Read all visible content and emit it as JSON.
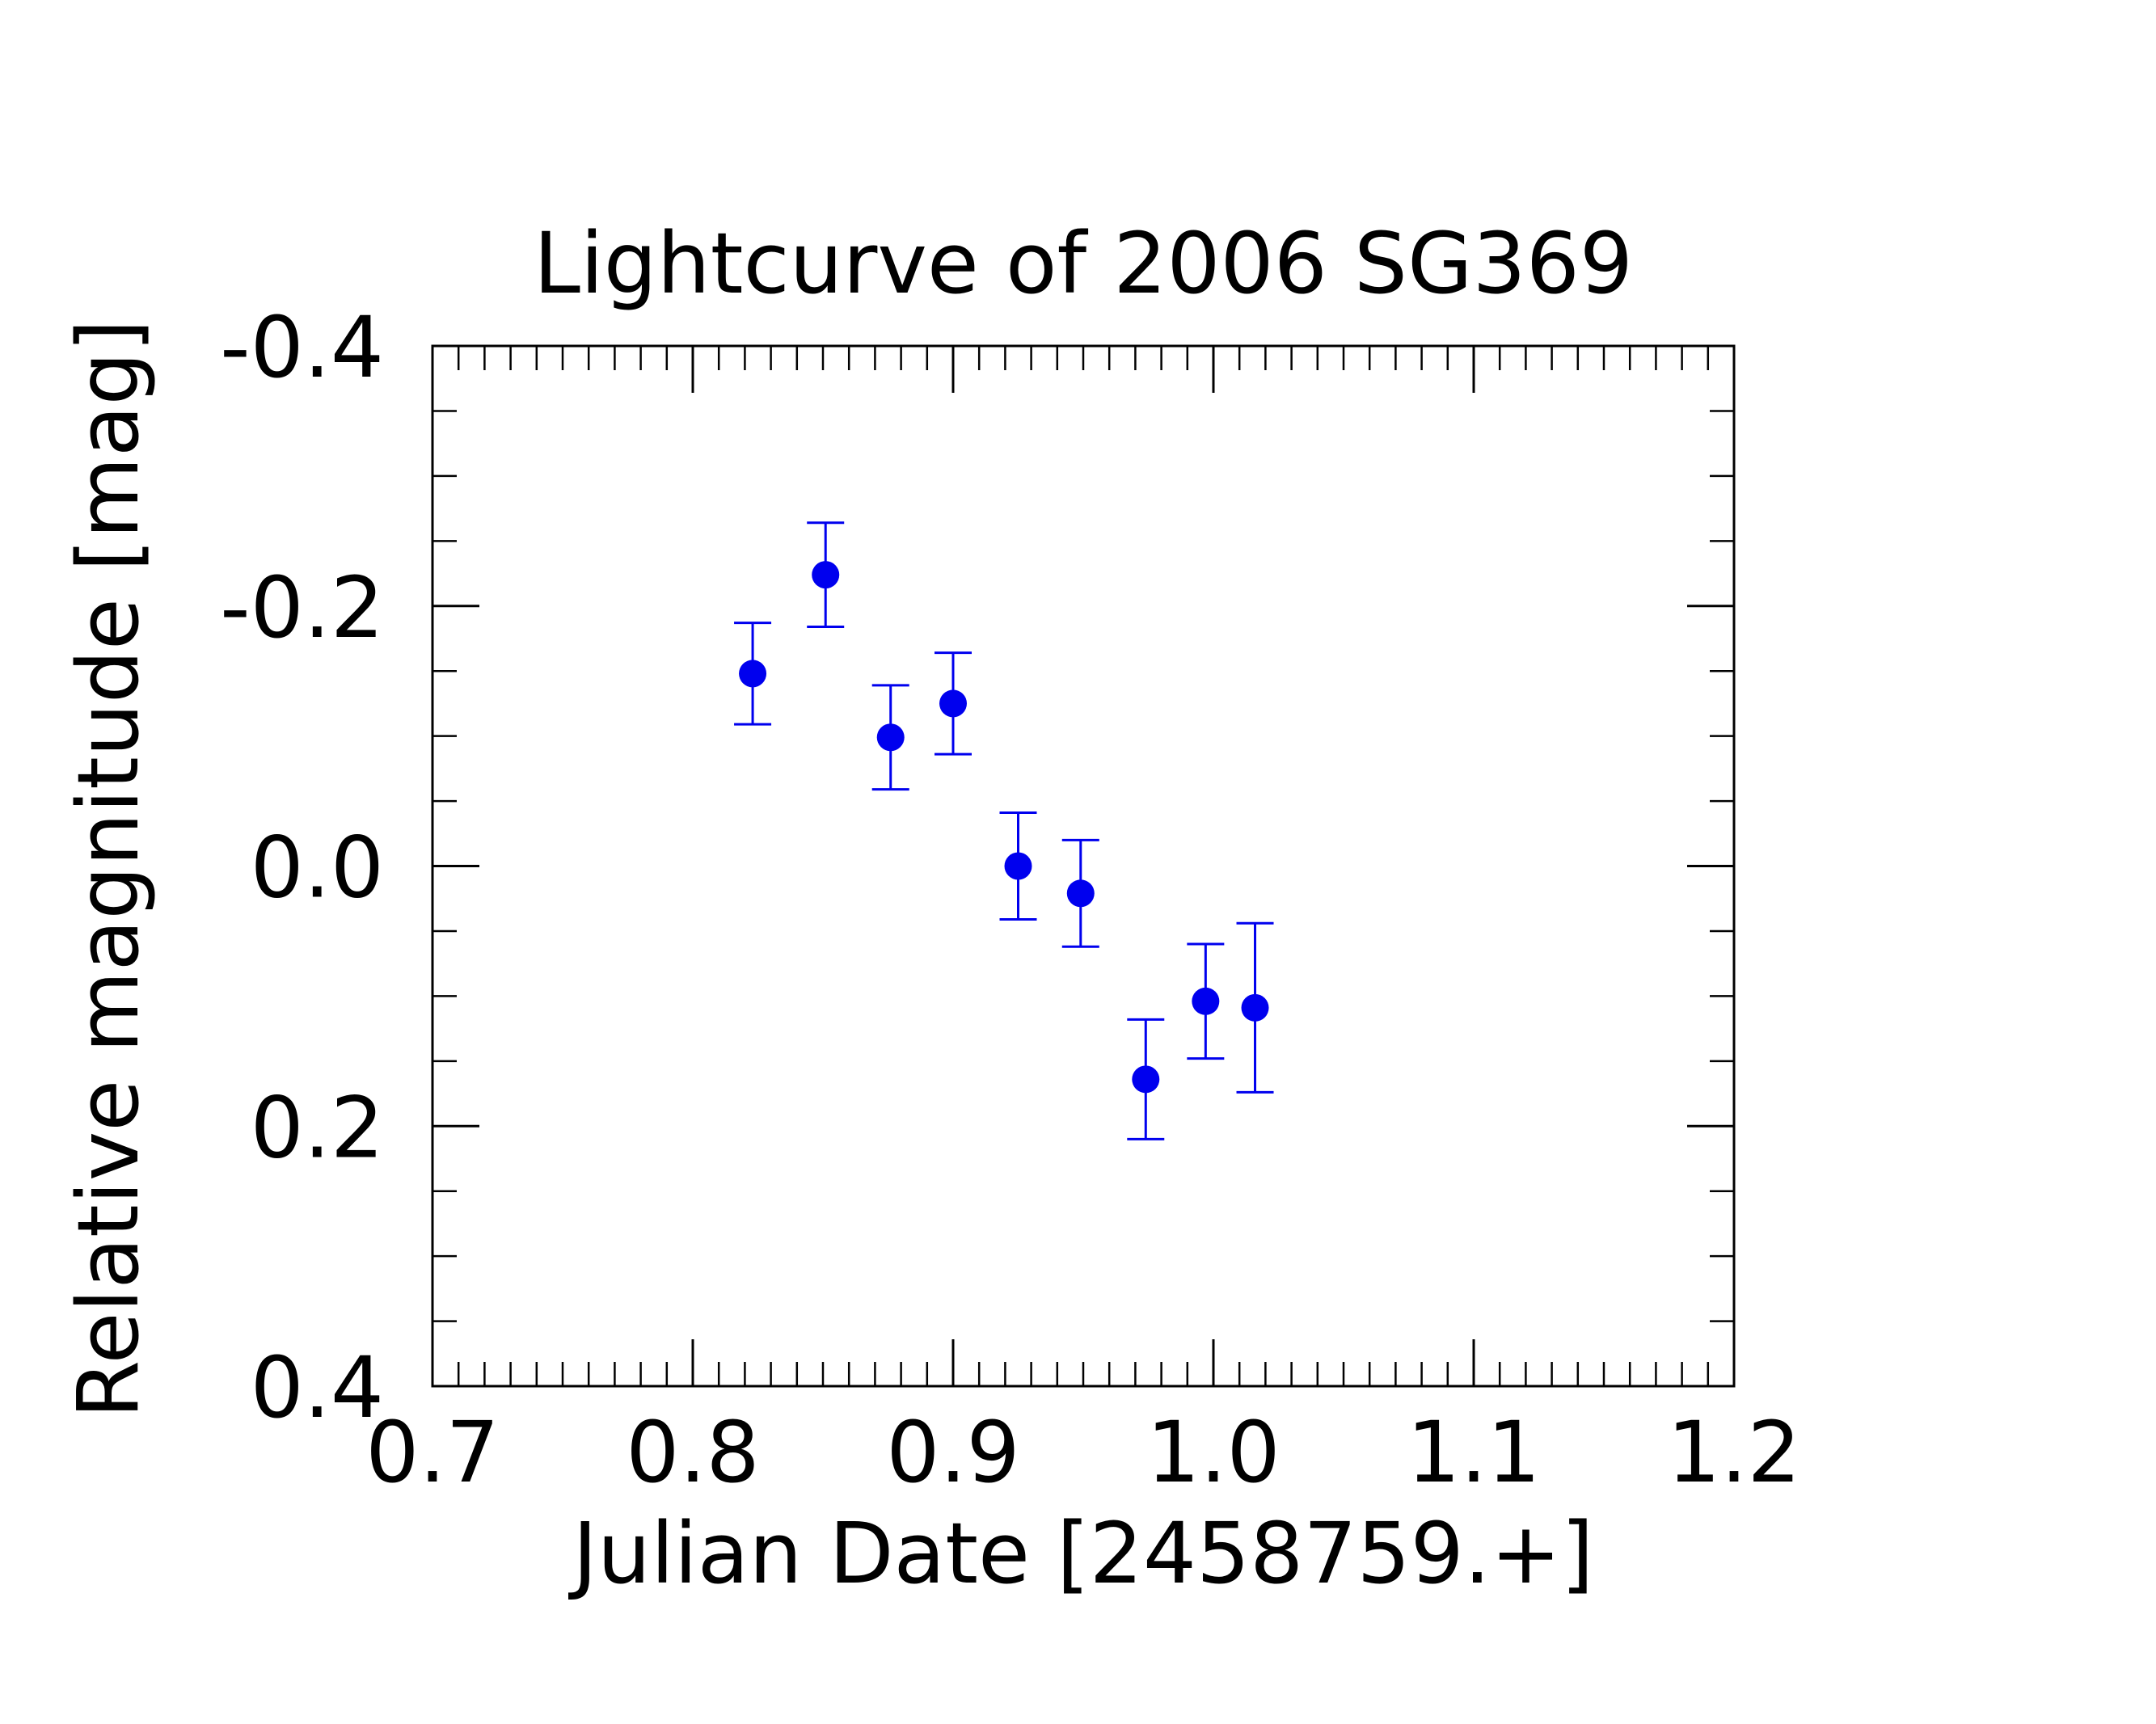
{
  "chart_data": {
    "type": "scatter",
    "title": "Lightcurve of 2006 SG369",
    "xlabel": "Julian Date [2458759.+]",
    "ylabel": "Relative magnitude [mag]",
    "xlim": [
      0.7,
      1.2
    ],
    "ylim": [
      0.4,
      -0.4
    ],
    "y_inverted": true,
    "x_ticks": [
      "0.7",
      "0.8",
      "0.9",
      "1.0",
      "1.1",
      "1.2"
    ],
    "x_tick_values": [
      0.7,
      0.8,
      0.9,
      1.0,
      1.1,
      1.2
    ],
    "y_ticks": [
      "-0.4",
      "-0.2",
      "0.0",
      "0.2",
      "0.4"
    ],
    "y_tick_values": [
      -0.4,
      -0.2,
      0.0,
      0.2,
      0.4
    ],
    "x_minor_step": 0.01,
    "y_minor_step": 0.05,
    "grid": false,
    "legend": "none",
    "marker_color": "#0000ee",
    "points": [
      {
        "x": 0.823,
        "y": -0.148,
        "err_low": -0.187,
        "err_high": -0.109
      },
      {
        "x": 0.851,
        "y": -0.224,
        "err_low": -0.264,
        "err_high": -0.184
      },
      {
        "x": 0.876,
        "y": -0.099,
        "err_low": -0.139,
        "err_high": -0.059
      },
      {
        "x": 0.9,
        "y": -0.125,
        "err_low": -0.164,
        "err_high": -0.086
      },
      {
        "x": 0.925,
        "y": 0.0,
        "err_low": -0.041,
        "err_high": 0.041
      },
      {
        "x": 0.949,
        "y": 0.021,
        "err_low": -0.02,
        "err_high": 0.062
      },
      {
        "x": 0.974,
        "y": 0.164,
        "err_low": 0.118,
        "err_high": 0.21
      },
      {
        "x": 0.997,
        "y": 0.104,
        "err_low": 0.06,
        "err_high": 0.148
      },
      {
        "x": 1.016,
        "y": 0.109,
        "err_low": 0.044,
        "err_high": 0.174
      }
    ]
  }
}
